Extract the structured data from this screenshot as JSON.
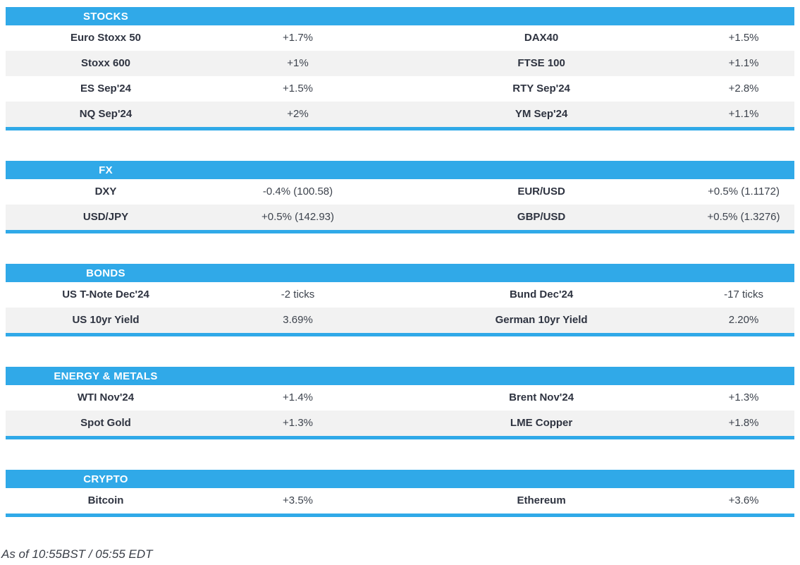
{
  "colors": {
    "accent_blue": "#30A9E8",
    "row_stripe": "#F2F2F2",
    "label_text": "#2E3340",
    "value_text": "#3D434D"
  },
  "sections": [
    {
      "title": "STOCKS",
      "rows": [
        [
          "Euro Stoxx 50",
          "+1.7%",
          "DAX40",
          "+1.5%"
        ],
        [
          "Stoxx 600",
          "+1%",
          "FTSE 100",
          "+1.1%"
        ],
        [
          "ES Sep'24",
          "+1.5%",
          "RTY Sep'24",
          "+2.8%"
        ],
        [
          "NQ Sep'24",
          "+2%",
          "YM Sep'24",
          "+1.1%"
        ]
      ]
    },
    {
      "title": "FX",
      "rows": [
        [
          "DXY",
          "-0.4% (100.58)",
          "EUR/USD",
          "+0.5% (1.1172)"
        ],
        [
          "USD/JPY",
          "+0.5% (142.93)",
          "GBP/USD",
          "+0.5% (1.3276)"
        ]
      ]
    },
    {
      "title": "BONDS",
      "rows": [
        [
          "US T-Note Dec'24",
          "-2 ticks",
          "Bund Dec'24",
          "-17 ticks"
        ],
        [
          "US 10yr Yield",
          "3.69%",
          "German 10yr Yield",
          "2.20%"
        ]
      ]
    },
    {
      "title": "ENERGY & METALS",
      "rows": [
        [
          "WTI Nov'24",
          "+1.4%",
          "Brent Nov'24",
          "+1.3%"
        ],
        [
          "Spot Gold",
          "+1.3%",
          "LME Copper",
          "+1.8%"
        ]
      ]
    },
    {
      "title": "CRYPTO",
      "rows": [
        [
          "Bitcoin",
          "+3.5%",
          "Ethereum",
          "+3.6%"
        ]
      ]
    }
  ],
  "footer": {
    "as_of": "As of 10:55BST / 05:55 EDT"
  }
}
